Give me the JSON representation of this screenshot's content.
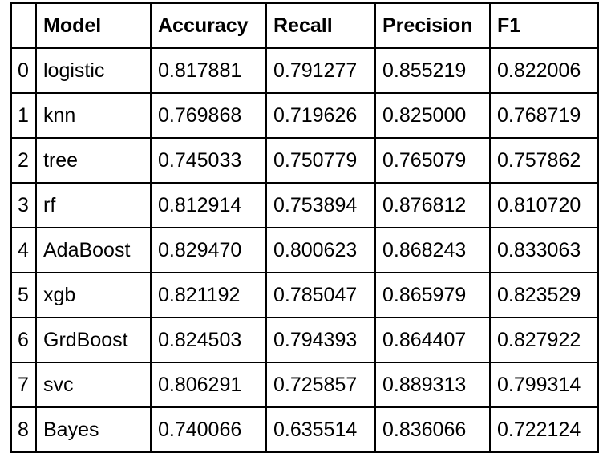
{
  "table": {
    "columns": [
      "",
      "Model",
      "Accuracy",
      "Recall",
      "Precision",
      "F1"
    ],
    "rows": [
      {
        "index": "0",
        "model": "logistic",
        "accuracy": "0.817881",
        "recall": "0.791277",
        "precision": "0.855219",
        "f1": "0.822006"
      },
      {
        "index": "1",
        "model": "knn",
        "accuracy": "0.769868",
        "recall": "0.719626",
        "precision": "0.825000",
        "f1": "0.768719"
      },
      {
        "index": "2",
        "model": "tree",
        "accuracy": "0.745033",
        "recall": "0.750779",
        "precision": "0.765079",
        "f1": "0.757862"
      },
      {
        "index": "3",
        "model": "rf",
        "accuracy": "0.812914",
        "recall": "0.753894",
        "precision": "0.876812",
        "f1": "0.810720"
      },
      {
        "index": "4",
        "model": "AdaBoost",
        "accuracy": "0.829470",
        "recall": "0.800623",
        "precision": "0.868243",
        "f1": "0.833063"
      },
      {
        "index": "5",
        "model": "xgb",
        "accuracy": "0.821192",
        "recall": "0.785047",
        "precision": "0.865979",
        "f1": "0.823529"
      },
      {
        "index": "6",
        "model": "GrdBoost",
        "accuracy": "0.824503",
        "recall": "0.794393",
        "precision": "0.864407",
        "f1": "0.827922"
      },
      {
        "index": "7",
        "model": "svc",
        "accuracy": "0.806291",
        "recall": "0.725857",
        "precision": "0.889313",
        "f1": "0.799314"
      },
      {
        "index": "8",
        "model": "Bayes",
        "accuracy": "0.740066",
        "recall": "0.635514",
        "precision": "0.836066",
        "f1": "0.722124"
      }
    ]
  }
}
